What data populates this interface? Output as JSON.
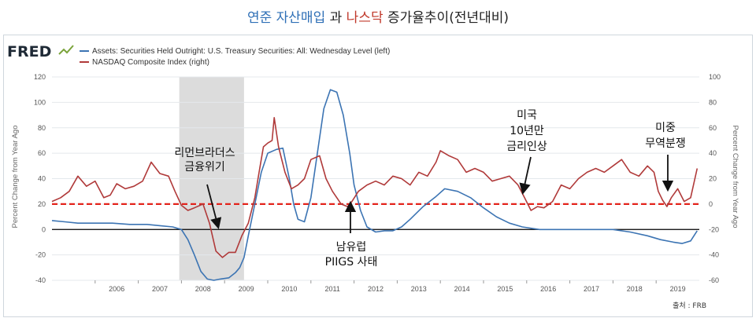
{
  "title": {
    "part1": "연준 자산매입",
    "part2": "과",
    "part3": "나스닥",
    "part4": "증가율추이(전년대비)"
  },
  "logo": {
    "text": "FRED"
  },
  "source": "출처 : FRB",
  "colors": {
    "assets": "#3c74b3",
    "nasdaq": "#b03a3a",
    "redline": "#e3231b",
    "shade": "#dcdcdc",
    "zero": "#000000"
  },
  "annotations": [
    {
      "name": "lehman",
      "lines": [
        "리먼브라더스",
        "금융위기"
      ]
    },
    {
      "name": "fed-hike",
      "lines": [
        "미국",
        "10년만",
        "금리인상"
      ]
    },
    {
      "name": "trade-war",
      "lines": [
        "미중",
        "무역분쟁"
      ]
    },
    {
      "name": "euro-crisis",
      "lines": [
        "남유럽",
        "PIIGS 사태"
      ]
    }
  ],
  "chart_data": {
    "type": "line",
    "legend_placement": "top-left",
    "legend": [
      {
        "series": "assets",
        "label": "Assets: Securities Held Outright: U.S. Treasury Securities: All: Wednesday Level (left)"
      },
      {
        "series": "nasdaq",
        "label": "NASDAQ Composite Index (right)"
      }
    ],
    "ylabel_left": "Percent Change from Year Ago",
    "ylabel_right": "Percent Change from Year Ago",
    "ylim_left": [
      -40,
      120
    ],
    "ylim_right": [
      -60,
      100
    ],
    "yticks_left": [
      "120",
      "100",
      "80",
      "60",
      "40",
      "20",
      "0",
      "-20",
      "-40"
    ],
    "yticks_right": [
      "100",
      "80",
      "60",
      "40",
      "20",
      "0",
      "-20",
      "-40",
      "-60"
    ],
    "xlim": [
      2005.0,
      2020.0
    ],
    "xticks": [
      {
        "label": "2006",
        "x": 2006.0
      },
      {
        "label": "2007",
        "x": 2007.0
      },
      {
        "label": "2008",
        "x": 2008.0
      },
      {
        "label": "2009",
        "x": 2009.0
      },
      {
        "label": "2010",
        "x": 2010.0
      },
      {
        "label": "2011",
        "x": 2011.0
      },
      {
        "label": "2012",
        "x": 2012.0
      },
      {
        "label": "2013",
        "x": 2013.0
      },
      {
        "label": "2014",
        "x": 2014.0
      },
      {
        "label": "2015",
        "x": 2015.0
      },
      {
        "label": "2016",
        "x": 2016.0
      },
      {
        "label": "2017",
        "x": 2017.0
      },
      {
        "label": "2018",
        "x": 2018.0
      },
      {
        "label": "2019",
        "x": 2019.0
      }
    ],
    "recession": [
      2007.95,
      2009.45
    ],
    "reference_line_left": 20,
    "series": [
      {
        "id": "assets",
        "axis": "left",
        "x": [
          2005.0,
          2005.3,
          2005.6,
          2006.0,
          2006.4,
          2006.8,
          2007.2,
          2007.5,
          2007.8,
          2008.0,
          2008.15,
          2008.3,
          2008.45,
          2008.6,
          2008.75,
          2008.9,
          2009.1,
          2009.25,
          2009.35,
          2009.45,
          2009.55,
          2009.7,
          2009.85,
          2010.0,
          2010.2,
          2010.35,
          2010.5,
          2010.6,
          2010.7,
          2010.85,
          2011.0,
          2011.15,
          2011.3,
          2011.45,
          2011.6,
          2011.75,
          2011.9,
          2012.0,
          2012.15,
          2012.3,
          2012.5,
          2012.7,
          2012.9,
          2013.1,
          2013.3,
          2013.6,
          2013.9,
          2014.1,
          2014.4,
          2014.7,
          2015.0,
          2015.3,
          2015.6,
          2015.9,
          2016.3,
          2016.7,
          2017.0,
          2017.5,
          2018.0,
          2018.4,
          2018.8,
          2019.1,
          2019.4,
          2019.6,
          2019.8,
          2019.95
        ],
        "values": [
          7,
          6,
          5,
          5,
          5,
          4,
          4,
          3,
          2,
          0,
          -8,
          -20,
          -33,
          -39,
          -40,
          -39,
          -38,
          -34,
          -30,
          -22,
          -5,
          20,
          45,
          60,
          63,
          64,
          40,
          20,
          8,
          6,
          25,
          60,
          95,
          110,
          108,
          90,
          60,
          35,
          15,
          2,
          -2,
          -1,
          -1,
          2,
          8,
          18,
          26,
          32,
          30,
          25,
          17,
          10,
          5,
          2,
          0,
          0,
          0,
          0,
          0,
          -2,
          -5,
          -8,
          -10,
          -11,
          -9,
          -1
        ]
      },
      {
        "id": "nasdaq",
        "axis": "right",
        "x": [
          2005.0,
          2005.2,
          2005.4,
          2005.6,
          2005.8,
          2006.0,
          2006.2,
          2006.35,
          2006.5,
          2006.7,
          2006.9,
          2007.1,
          2007.3,
          2007.5,
          2007.7,
          2007.85,
          2008.0,
          2008.15,
          2008.3,
          2008.5,
          2008.65,
          2008.8,
          2008.95,
          2009.1,
          2009.25,
          2009.4,
          2009.55,
          2009.7,
          2009.8,
          2009.9,
          2010.0,
          2010.1,
          2010.15,
          2010.25,
          2010.4,
          2010.55,
          2010.7,
          2010.85,
          2011.0,
          2011.2,
          2011.35,
          2011.5,
          2011.7,
          2011.85,
          2011.95,
          2012.1,
          2012.3,
          2012.5,
          2012.7,
          2012.9,
          2013.1,
          2013.3,
          2013.5,
          2013.7,
          2013.9,
          2014.0,
          2014.2,
          2014.4,
          2014.6,
          2014.8,
          2015.0,
          2015.2,
          2015.4,
          2015.6,
          2015.8,
          2015.95,
          2016.1,
          2016.25,
          2016.4,
          2016.6,
          2016.8,
          2017.0,
          2017.2,
          2017.4,
          2017.6,
          2017.8,
          2018.0,
          2018.2,
          2018.4,
          2018.6,
          2018.8,
          2018.95,
          2019.05,
          2019.15,
          2019.25,
          2019.35,
          2019.5,
          2019.65,
          2019.8,
          2019.95
        ],
        "values": [
          2,
          5,
          10,
          22,
          14,
          18,
          5,
          7,
          16,
          12,
          14,
          18,
          33,
          24,
          22,
          10,
          -1,
          -5,
          -3,
          0,
          -15,
          -37,
          -42,
          -38,
          -38,
          -25,
          -15,
          5,
          25,
          45,
          48,
          50,
          68,
          45,
          25,
          12,
          15,
          20,
          35,
          38,
          20,
          10,
          0,
          -2,
          2,
          10,
          15,
          18,
          15,
          22,
          20,
          15,
          25,
          22,
          33,
          42,
          38,
          35,
          25,
          28,
          25,
          18,
          20,
          22,
          15,
          5,
          -5,
          -2,
          -3,
          2,
          15,
          12,
          20,
          25,
          28,
          25,
          30,
          35,
          25,
          22,
          30,
          25,
          10,
          3,
          -2,
          5,
          12,
          2,
          5,
          28
        ]
      }
    ]
  }
}
